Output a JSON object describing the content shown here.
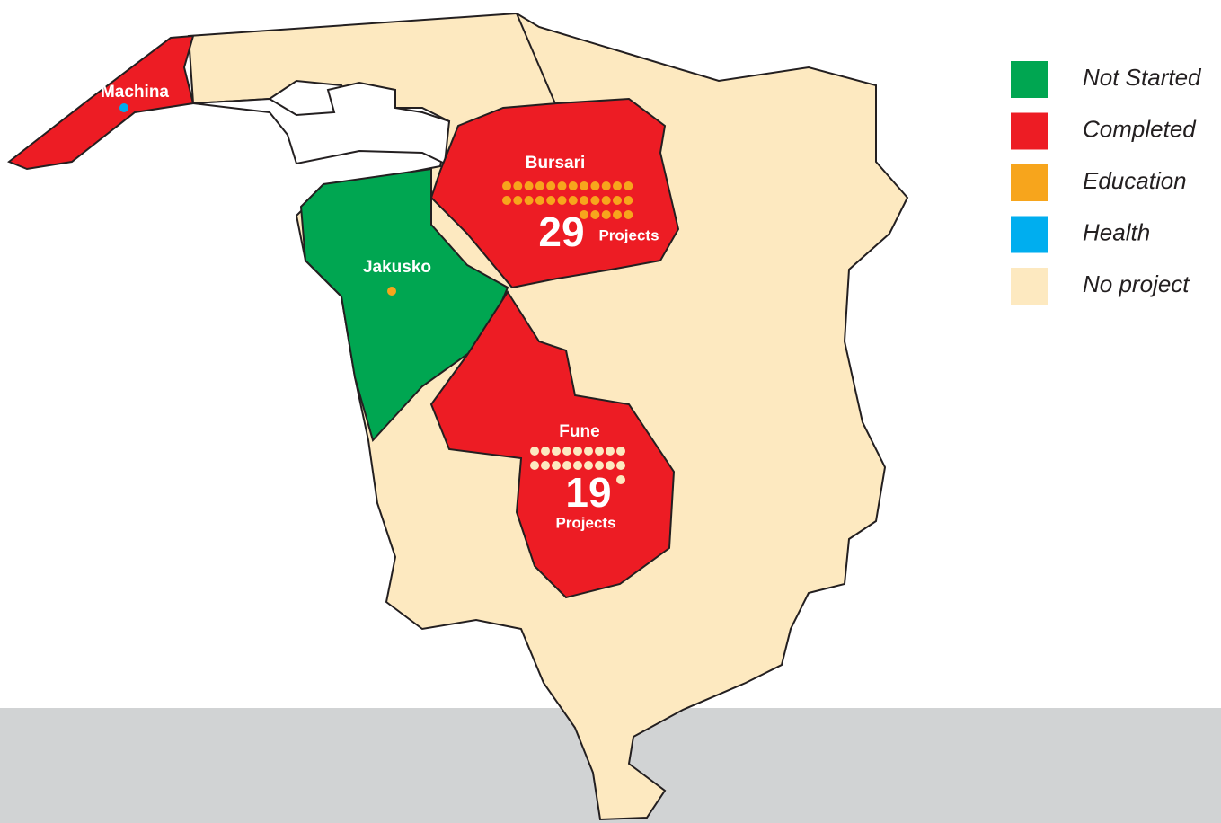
{
  "regions": [
    {
      "name": "Machina",
      "fill": "#ed1c24",
      "projects": 1,
      "dot_color": "#00aeef"
    },
    {
      "name": "Bursari",
      "fill": "#ed1c24",
      "projects": 29,
      "dot_color": "#f7a51c",
      "count_label": "Projects"
    },
    {
      "name": "Jakusko",
      "fill": "#00a651",
      "projects": 1,
      "dot_color": "#f7a51c"
    },
    {
      "name": "Fune",
      "fill": "#ed1c24",
      "projects": 19,
      "dot_color": "#fde9c0",
      "count_label": "Projects"
    }
  ],
  "legend": [
    {
      "label": "Not Started",
      "color": "#00a651"
    },
    {
      "label": "Completed",
      "color": "#ed1c24"
    },
    {
      "label": "Education",
      "color": "#f7a51c"
    },
    {
      "label": "Health",
      "color": "#00aeef"
    },
    {
      "label": "No project",
      "color": "#fde9c0"
    }
  ]
}
